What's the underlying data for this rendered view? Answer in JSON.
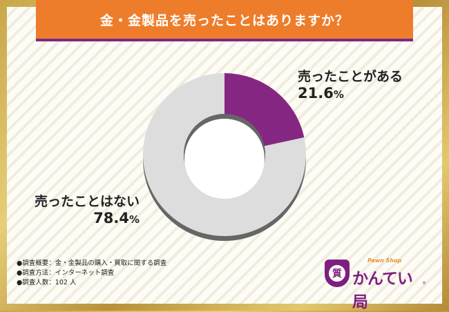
{
  "title": "金・金製品を売ったことはありますか？",
  "chart_data": {
    "type": "pie",
    "categories": [
      "売ったことがある",
      "売ったことはない"
    ],
    "values": [
      21.6,
      78.4
    ],
    "unit": "%",
    "labels": [
      {
        "name": "売ったことがある",
        "value": "21.6",
        "unit": "%"
      },
      {
        "name": "売ったことはない",
        "value": "78.4",
        "unit": "%"
      }
    ],
    "colors": [
      "#862683",
      "#dddddd"
    ],
    "hole_color": "#ffffff",
    "shadow_color": "#666666"
  },
  "notes": [
    "●調査概要：金・金製品の購入・買取に関する調査",
    "●調査方法：インターネット調査",
    "●調査人数：102 人"
  ],
  "logo": {
    "sub": "Pawn Shop",
    "name": "かんてい局",
    "emblem": "質",
    "mark": "®"
  }
}
